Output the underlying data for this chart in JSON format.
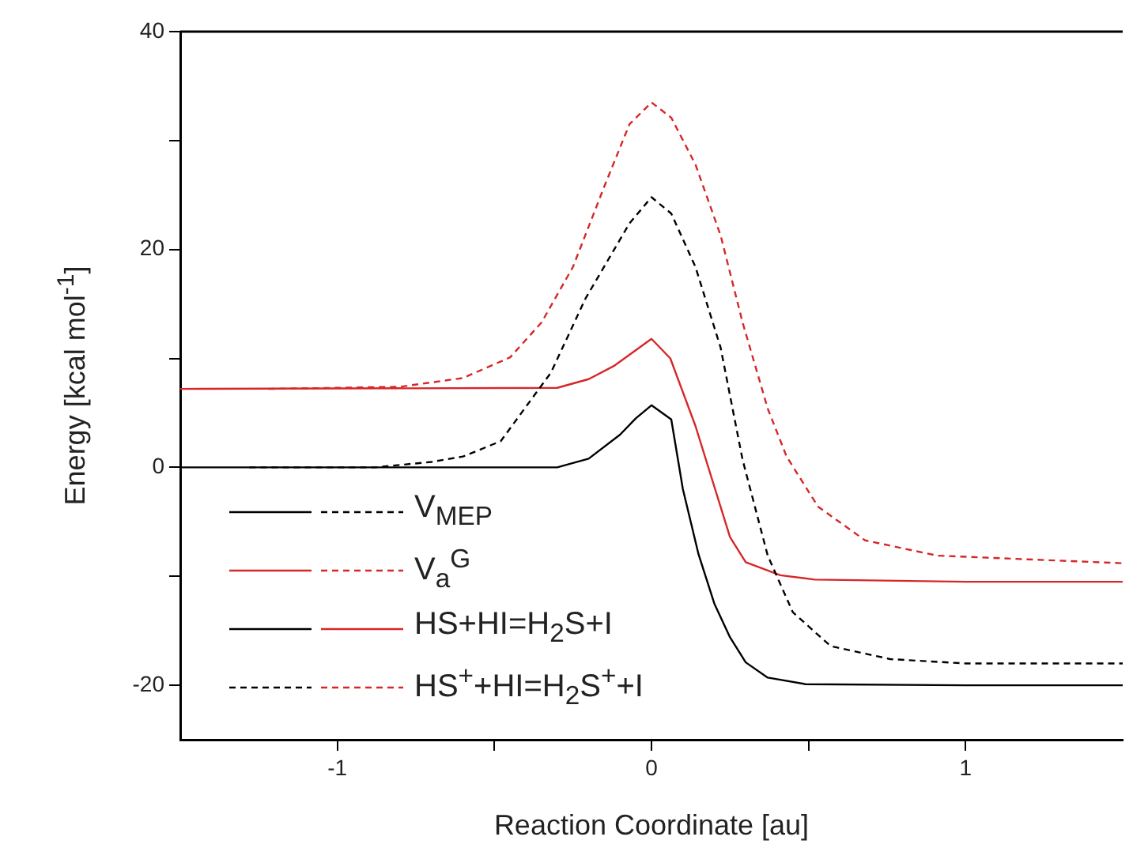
{
  "chart_data": {
    "type": "line",
    "xlabel": "Reaction Coordinate [au]",
    "ylabel": "Energy [kcal mol$^{-1}$]",
    "xlim": [
      -1.5,
      1.5
    ],
    "xticks": [
      -1,
      {
        "value": -0.5,
        "label": null
      },
      0,
      {
        "value": 0.5,
        "label": null
      },
      1
    ],
    "ylim": [
      -25,
      40
    ],
    "yticks": [
      -20,
      {
        "value": -10,
        "label": null
      },
      0,
      {
        "value": 10,
        "label": null
      },
      20,
      {
        "value": 30,
        "label": null
      },
      40
    ],
    "grid": false,
    "marker": "none",
    "annotations": [
      "V$_{MEP}$",
      "V$_{a}$$^{G}$",
      "HS+HI=H$_{2}$S+I",
      "HS$^{+}$+HI=H$_{2}$S$^{+}$+I"
    ],
    "series": [
      {
        "color": "#000000",
        "line_style": "solid",
        "x": [
          -1.5,
          -0.3,
          -0.2,
          -0.1,
          -0.05,
          0,
          0.063,
          0.1,
          0.15,
          0.2,
          0.25,
          0.3,
          0.37,
          0.49,
          1.0,
          1.5
        ],
        "values": [
          0,
          0,
          0.8,
          3,
          4.5,
          5.7,
          4.4,
          -2,
          -8,
          -12.5,
          -15.6,
          -17.9,
          -19.3,
          -19.9,
          -20,
          -20
        ]
      },
      {
        "color": "#000000",
        "line_style": "dashed",
        "x": [
          -1.28,
          -0.88,
          -0.7,
          -0.6,
          -0.48,
          -0.32,
          -0.21,
          -0.07,
          0,
          0.063,
          0.14,
          0.22,
          0.29,
          0.37,
          0.45,
          0.57,
          0.76,
          1.0,
          1.5
        ],
        "values": [
          0,
          0,
          0.5,
          1,
          2.4,
          8.7,
          15.5,
          22.4,
          24.8,
          23.3,
          18.4,
          11,
          0.7,
          -8.1,
          -13.3,
          -16.4,
          -17.6,
          -18,
          -18
        ]
      },
      {
        "color": "#d62728",
        "line_style": "solid",
        "x": [
          -1.5,
          -0.3,
          -0.2,
          -0.12,
          0,
          0.06,
          0.14,
          0.25,
          0.3,
          0.41,
          0.52,
          1.0,
          1.5
        ],
        "values": [
          7.2,
          7.3,
          8.1,
          9.3,
          11.8,
          10,
          3.8,
          -6.4,
          -8.7,
          -9.9,
          -10.3,
          -10.5,
          -10.5
        ]
      },
      {
        "color": "#d62728",
        "line_style": "dashed",
        "x": [
          -1.22,
          -0.8,
          -0.6,
          -0.45,
          -0.35,
          -0.25,
          -0.15,
          -0.07,
          0,
          0.063,
          0.14,
          0.22,
          0.29,
          0.37,
          0.43,
          0.53,
          0.68,
          0.91,
          1.5
        ],
        "values": [
          7.2,
          7.4,
          8.2,
          10.1,
          13.3,
          18.4,
          25.8,
          31.5,
          33.5,
          32.1,
          27.8,
          21.3,
          13.3,
          5.4,
          1,
          -3.6,
          -6.7,
          -8.1,
          -8.8
        ]
      }
    ]
  }
}
